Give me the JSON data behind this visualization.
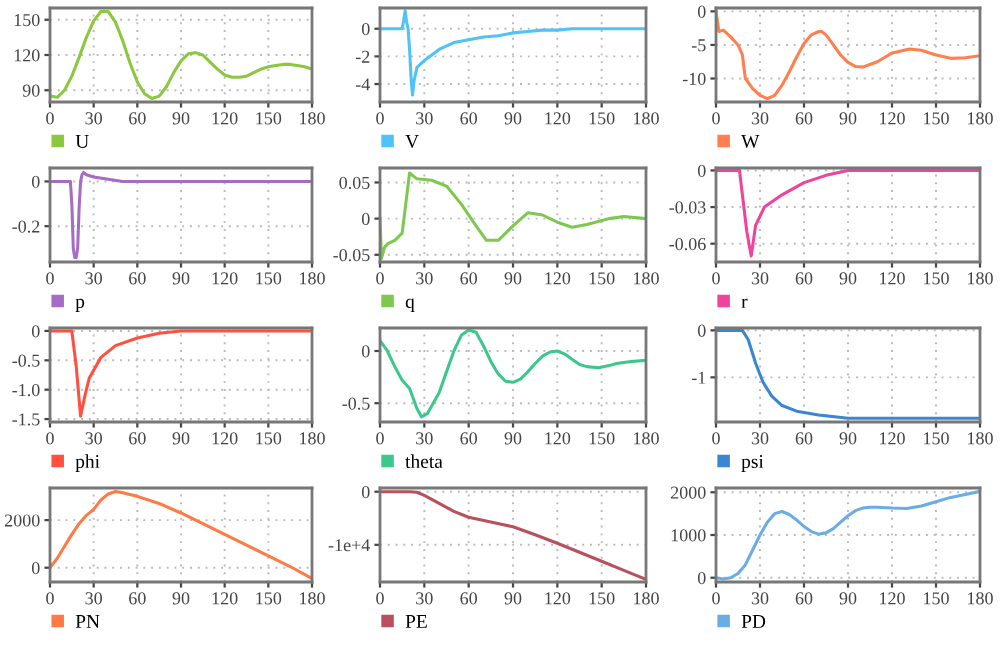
{
  "chart_data": [
    {
      "type": "line",
      "xlim": [
        0,
        180
      ],
      "xticks": [
        0,
        30,
        60,
        90,
        120,
        150,
        180
      ],
      "ylim": [
        80,
        160
      ],
      "yticks": [
        90,
        120,
        150
      ],
      "grid": true,
      "legend": "bottom",
      "series": [
        {
          "name": "U",
          "color": "#8dc63f",
          "x": [
            0,
            5,
            10,
            15,
            20,
            25,
            30,
            35,
            40,
            45,
            50,
            55,
            60,
            65,
            70,
            75,
            80,
            85,
            90,
            95,
            100,
            105,
            110,
            115,
            120,
            125,
            130,
            135,
            140,
            145,
            150,
            155,
            160,
            165,
            170,
            175,
            180
          ],
          "values": [
            85,
            84,
            90,
            102,
            118,
            135,
            149,
            157,
            157,
            148,
            132,
            113,
            97,
            87,
            83,
            85,
            93,
            105,
            115,
            121,
            122,
            120,
            114,
            108,
            103,
            101,
            101,
            102,
            105,
            108,
            110,
            111,
            112,
            112,
            111,
            110,
            108
          ]
        }
      ]
    },
    {
      "type": "line",
      "xlim": [
        0,
        180
      ],
      "xticks": [
        0,
        30,
        60,
        90,
        120,
        150,
        180
      ],
      "ylim": [
        -5.3,
        1.5
      ],
      "yticks": [
        -4,
        -2,
        0
      ],
      "grid": true,
      "legend": "bottom",
      "series": [
        {
          "name": "V",
          "color": "#4fc3f7",
          "x": [
            0,
            10,
            15,
            16,
            17,
            18,
            19,
            20,
            21,
            22,
            23,
            25,
            30,
            35,
            40,
            50,
            60,
            70,
            80,
            90,
            100,
            110,
            120,
            130,
            150,
            180
          ],
          "values": [
            0,
            0,
            0,
            0.6,
            1.3,
            0.5,
            0,
            -1.5,
            -3.5,
            -4.8,
            -3.8,
            -2.8,
            -2.3,
            -1.9,
            -1.5,
            -1.0,
            -0.8,
            -0.6,
            -0.5,
            -0.3,
            -0.2,
            -0.1,
            -0.1,
            0,
            0,
            0
          ]
        }
      ]
    },
    {
      "type": "line",
      "xlim": [
        0,
        180
      ],
      "xticks": [
        0,
        30,
        60,
        90,
        120,
        150,
        180
      ],
      "ylim": [
        -13.5,
        0.5
      ],
      "yticks": [
        -10,
        -5,
        0
      ],
      "grid": true,
      "legend": "bottom",
      "series": [
        {
          "name": "W",
          "color": "#ff7f50",
          "x": [
            0,
            2,
            5,
            10,
            15,
            18,
            20,
            25,
            30,
            35,
            40,
            45,
            50,
            55,
            60,
            65,
            70,
            72,
            75,
            80,
            85,
            90,
            95,
            100,
            110,
            120,
            132,
            140,
            150,
            160,
            170,
            180
          ],
          "values": [
            0,
            -3,
            -2.8,
            -3.8,
            -5,
            -6.5,
            -10,
            -11.5,
            -12.5,
            -13,
            -12.5,
            -11,
            -9,
            -6.8,
            -4.8,
            -3.5,
            -3,
            -3,
            -3.5,
            -5,
            -6.5,
            -7.6,
            -8.2,
            -8.3,
            -7.5,
            -6.2,
            -5.6,
            -5.8,
            -6.5,
            -7,
            -6.9,
            -6.6
          ]
        }
      ]
    },
    {
      "type": "line",
      "xlim": [
        0,
        180
      ],
      "xticks": [
        0,
        30,
        60,
        90,
        120,
        150,
        180
      ],
      "ylim": [
        -0.36,
        0.06
      ],
      "yticks": [
        -0.2,
        0
      ],
      "grid": true,
      "legend": "bottom",
      "series": [
        {
          "name": "p",
          "color": "#a66bc4",
          "x": [
            0,
            14,
            15,
            16,
            17,
            18,
            19,
            20,
            21,
            22,
            23,
            25,
            30,
            40,
            50,
            60,
            180
          ],
          "values": [
            0,
            0,
            -0.1,
            -0.3,
            -0.34,
            -0.34,
            -0.3,
            -0.12,
            0,
            0.03,
            0.04,
            0.03,
            0.02,
            0.01,
            0,
            0,
            0
          ]
        }
      ]
    },
    {
      "type": "line",
      "xlim": [
        0,
        180
      ],
      "xticks": [
        0,
        30,
        60,
        90,
        120,
        150,
        180
      ],
      "ylim": [
        -0.06,
        0.07
      ],
      "yticks": [
        -0.05,
        0,
        0.05
      ],
      "grid": true,
      "legend": "bottom",
      "series": [
        {
          "name": "q",
          "color": "#7ec850",
          "x": [
            0,
            1,
            3,
            5,
            10,
            15,
            20,
            25,
            35,
            45,
            55,
            65,
            72,
            80,
            90,
            100,
            110,
            120,
            130,
            140,
            155,
            165,
            180
          ],
          "values": [
            0,
            -0.055,
            -0.04,
            -0.035,
            -0.03,
            -0.02,
            0.063,
            0.055,
            0.053,
            0.045,
            0.02,
            -0.01,
            -0.03,
            -0.03,
            -0.01,
            0.008,
            0.005,
            -0.005,
            -0.012,
            -0.008,
            0,
            0.003,
            0
          ]
        }
      ]
    },
    {
      "type": "line",
      "xlim": [
        0,
        180
      ],
      "xticks": [
        0,
        30,
        60,
        90,
        120,
        150,
        180
      ],
      "ylim": [
        -0.075,
        0.002
      ],
      "yticks": [
        -0.06,
        -0.03,
        0
      ],
      "grid": true,
      "legend": "bottom",
      "series": [
        {
          "name": "r",
          "color": "#f0449c",
          "x": [
            0,
            16,
            21,
            24,
            27,
            33,
            45,
            60,
            75,
            90,
            180
          ],
          "values": [
            0,
            0,
            -0.05,
            -0.07,
            -0.045,
            -0.03,
            -0.02,
            -0.01,
            -0.004,
            0,
            0
          ]
        }
      ]
    },
    {
      "type": "line",
      "xlim": [
        0,
        180
      ],
      "xticks": [
        0,
        30,
        60,
        90,
        120,
        150,
        180
      ],
      "ylim": [
        -1.55,
        0.05
      ],
      "yticks": [
        {
          "value": -1.5,
          "label": "-1.5"
        },
        {
          "value": -1,
          "label": "-1.0"
        },
        {
          "value": -0.5,
          "label": "-0.5"
        },
        0
      ],
      "grid": true,
      "legend": "bottom",
      "series": [
        {
          "name": "phi",
          "color": "#ff5040",
          "x": [
            0,
            15,
            18,
            21,
            24,
            27,
            35,
            45,
            60,
            75,
            90,
            180
          ],
          "values": [
            0,
            0,
            -0.6,
            -1.45,
            -1.1,
            -0.8,
            -0.45,
            -0.25,
            -0.12,
            -0.04,
            0,
            0
          ]
        }
      ]
    },
    {
      "type": "line",
      "xlim": [
        0,
        180
      ],
      "xticks": [
        0,
        30,
        60,
        90,
        120,
        150,
        180
      ],
      "ylim": [
        -0.68,
        0.22
      ],
      "yticks": [
        -0.5,
        0
      ],
      "grid": true,
      "legend": "bottom",
      "series": [
        {
          "name": "theta",
          "color": "#3cc88c",
          "x": [
            0,
            5,
            10,
            15,
            20,
            25,
            28,
            32,
            40,
            45,
            50,
            55,
            60,
            65,
            70,
            75,
            80,
            85,
            90,
            95,
            100,
            105,
            110,
            115,
            120,
            125,
            130,
            135,
            140,
            148,
            155,
            160,
            170,
            180
          ],
          "values": [
            0.1,
            0,
            -0.15,
            -0.28,
            -0.36,
            -0.55,
            -0.63,
            -0.6,
            -0.4,
            -0.2,
            0,
            0.15,
            0.2,
            0.18,
            0.05,
            -0.1,
            -0.22,
            -0.29,
            -0.3,
            -0.27,
            -0.2,
            -0.12,
            -0.05,
            -0.01,
            0,
            -0.03,
            -0.08,
            -0.13,
            -0.15,
            -0.16,
            -0.14,
            -0.12,
            -0.1,
            -0.09
          ]
        }
      ]
    },
    {
      "type": "line",
      "xlim": [
        0,
        180
      ],
      "xticks": [
        0,
        30,
        60,
        90,
        120,
        150,
        180
      ],
      "ylim": [
        -1.95,
        0.05
      ],
      "yticks": [
        -1,
        0
      ],
      "grid": true,
      "legend": "bottom",
      "series": [
        {
          "name": "psi",
          "color": "#3a86d0",
          "x": [
            0,
            18,
            22,
            27,
            32,
            38,
            45,
            55,
            70,
            90,
            180
          ],
          "values": [
            0,
            0,
            -0.2,
            -0.7,
            -1.1,
            -1.4,
            -1.6,
            -1.72,
            -1.8,
            -1.87,
            -1.87
          ]
        }
      ]
    },
    {
      "type": "line",
      "xlim": [
        0,
        180
      ],
      "xticks": [
        0,
        30,
        60,
        90,
        120,
        150,
        180
      ],
      "ylim": [
        -600,
        3350
      ],
      "yticks": [
        0,
        2000
      ],
      "grid": true,
      "legend": "bottom",
      "series": [
        {
          "name": "PN",
          "color": "#ff7a45",
          "x": [
            0,
            5,
            10,
            15,
            20,
            25,
            30,
            35,
            40,
            45,
            50,
            60,
            75,
            90,
            105,
            120,
            135,
            150,
            165,
            180
          ],
          "values": [
            0,
            400,
            900,
            1400,
            1850,
            2200,
            2450,
            2850,
            3100,
            3200,
            3150,
            3000,
            2700,
            2300,
            1850,
            1400,
            950,
            500,
            50,
            -450
          ]
        }
      ]
    },
    {
      "type": "line",
      "xlim": [
        0,
        180
      ],
      "xticks": [
        0,
        30,
        60,
        90,
        120,
        150,
        180
      ],
      "ylim": [
        -17000,
        700
      ],
      "yticks": [
        {
          "value": -10000,
          "label": "-1e+4"
        },
        0
      ],
      "grid": true,
      "legend": "bottom",
      "series": [
        {
          "name": "PE",
          "color": "#b8505e",
          "x": [
            0,
            20,
            25,
            30,
            40,
            50,
            60,
            75,
            90,
            105,
            120,
            135,
            150,
            165,
            180
          ],
          "values": [
            0,
            0,
            -100,
            -700,
            -2200,
            -3700,
            -4800,
            -5700,
            -6600,
            -8100,
            -9700,
            -11400,
            -13100,
            -14800,
            -16500
          ]
        }
      ]
    },
    {
      "type": "line",
      "xlim": [
        0,
        180
      ],
      "xticks": [
        0,
        30,
        60,
        90,
        120,
        150,
        180
      ],
      "ylim": [
        -100,
        2100
      ],
      "yticks": [
        0,
        1000,
        2000
      ],
      "grid": true,
      "legend": "bottom",
      "series": [
        {
          "name": "PD",
          "color": "#6aade4",
          "x": [
            0,
            5,
            10,
            15,
            20,
            25,
            30,
            35,
            40,
            45,
            50,
            55,
            60,
            65,
            70,
            75,
            80,
            85,
            90,
            95,
            100,
            105,
            110,
            120,
            130,
            140,
            150,
            160,
            170,
            180
          ],
          "values": [
            0,
            -30,
            0,
            100,
            300,
            650,
            1000,
            1300,
            1500,
            1550,
            1480,
            1350,
            1200,
            1080,
            1020,
            1050,
            1150,
            1300,
            1450,
            1570,
            1630,
            1650,
            1650,
            1630,
            1620,
            1680,
            1780,
            1880,
            1950,
            2020
          ]
        }
      ]
    }
  ]
}
